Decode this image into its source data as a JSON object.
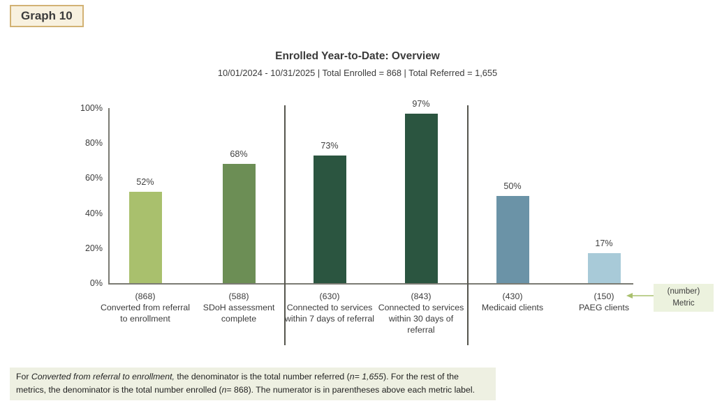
{
  "badge": {
    "label": "Graph 10"
  },
  "chart_data": {
    "type": "bar",
    "title": "Enrolled Year-to-Date: Overview",
    "subtitle": "10/01/2024 - 10/31/2025 | Total Enrolled = 868 | Total Referred = 1,655",
    "ylim": [
      0,
      100
    ],
    "yticks": [
      0,
      20,
      40,
      60,
      80,
      100
    ],
    "ytick_suffix": "%",
    "grid": false,
    "legend": "none",
    "group_dividers_after": [
      2,
      4
    ],
    "bars": [
      {
        "count_label": "(868)",
        "label": "Converted from referral to enrollment",
        "value": 52,
        "color": "#a9c06d"
      },
      {
        "count_label": "(588)",
        "label": "SDoH assessment complete",
        "value": 68,
        "color": "#6c8e55"
      },
      {
        "count_label": "(630)",
        "label": "Connected to services within 7 days of referral",
        "value": 73,
        "color": "#2b5540"
      },
      {
        "count_label": "(843)",
        "label": "Connected to services within 30 days of referral",
        "value": 97,
        "color": "#2b5540"
      },
      {
        "count_label": "(430)",
        "label": "Medicaid clients",
        "value": 50,
        "color": "#6b93a7"
      },
      {
        "count_label": "(150)",
        "label": "PAEG clients",
        "value": 17,
        "color": "#a8cad8"
      }
    ]
  },
  "annotation": {
    "line1": "(number)",
    "line2": "Metric",
    "bg": "#ecf2de",
    "arrow_color": "#a9c06d"
  },
  "footnote": {
    "bg": "#eef0e2",
    "segments": [
      {
        "text": "For ",
        "italic": false
      },
      {
        "text": "Converted from referral to enrollment,",
        "italic": true
      },
      {
        "text": " the denominator is the total number referred (",
        "italic": false
      },
      {
        "text": "n= 1,655",
        "italic": true
      },
      {
        "text": "). For the rest of the metrics, the denominator is the total number enrolled (",
        "italic": false
      },
      {
        "text": "n",
        "italic": true
      },
      {
        "text": "= 868",
        "italic": false
      },
      {
        "text": "). The numerator is in parentheses above each metric label.",
        "italic": false
      }
    ]
  },
  "colors": {
    "text": "#3f3f3f",
    "axis": "#7b7b73",
    "divider": "#55554d",
    "badge_bg": "#f8f1df",
    "badge_border": "#d2b274"
  }
}
